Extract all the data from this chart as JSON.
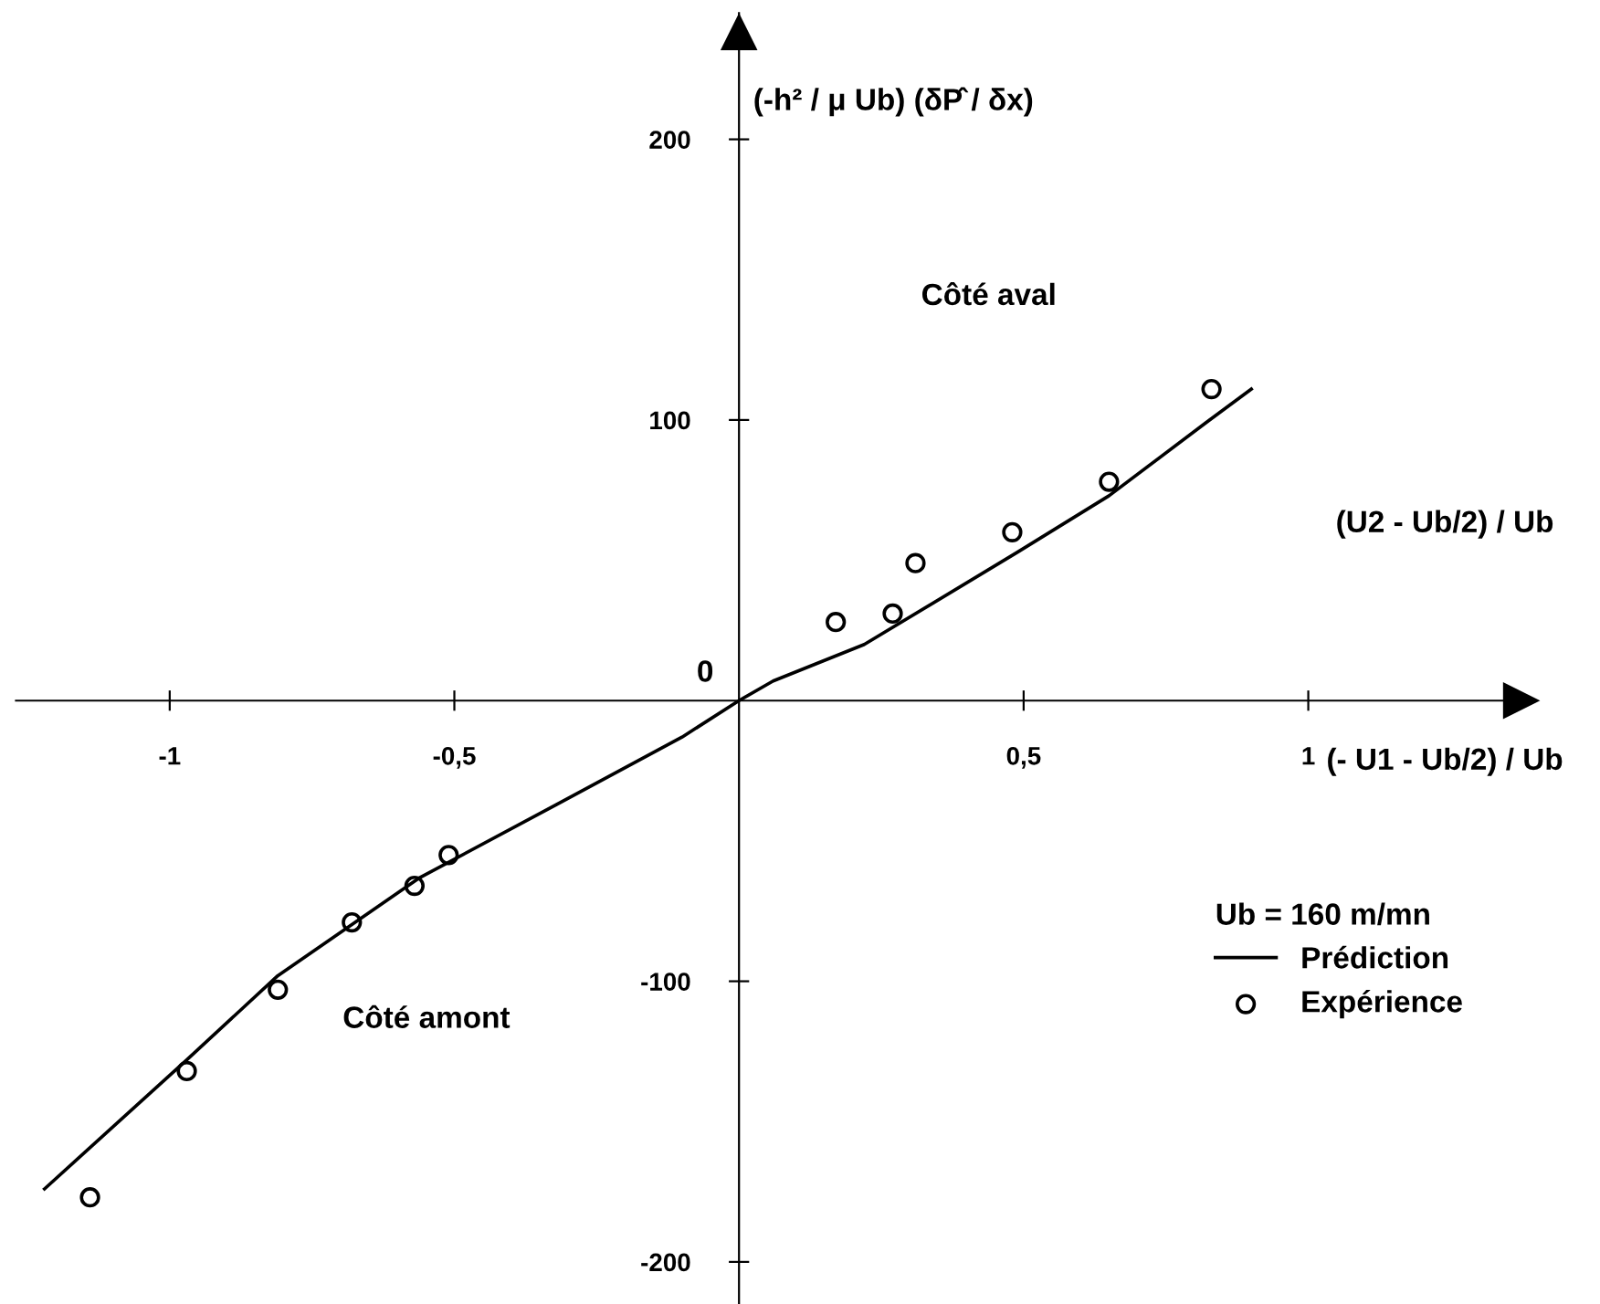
{
  "chart_data": {
    "type": "line",
    "xlabel": "(U2 - Ub/2) / Ub",
    "ylabel": "(-h² / μ Ub) (δP̂ / δx)",
    "legend_title": "Ub = 160 m/mn",
    "annotations": [
      "(- U1 - Ub/2) / Ub",
      "Côté aval",
      "Côté amont",
      {
        "text": "0",
        "x": 0,
        "y": 0
      }
    ],
    "series": [
      {
        "name": "Prédiction",
        "type": "line",
        "color": "#000000",
        "marker": "none",
        "line_style": "solid",
        "x": [
          -1.22,
          -0.97,
          -0.81,
          -0.56,
          -0.32,
          -0.1,
          0,
          0.06,
          0.22,
          0.49,
          0.65,
          0.82,
          0.9
        ],
        "values": [
          -174,
          -128,
          -98,
          -63,
          -37,
          -13,
          0,
          7,
          20,
          53,
          73,
          99,
          111
        ]
      },
      {
        "name": "Expérience",
        "type": "scatter",
        "color": "#000000",
        "marker": "circle",
        "x": [
          0.17,
          0.27,
          0.31,
          0.48,
          0.65,
          0.83,
          -0.51,
          -0.57,
          -0.68,
          -0.81,
          -0.97,
          -1.14
        ],
        "values": [
          28,
          31,
          49,
          60,
          78,
          111,
          -55,
          -66,
          -79,
          -103,
          -132,
          -177
        ]
      }
    ],
    "xlim": [
      -1.27,
      1.4
    ],
    "ylim": [
      -215,
      245
    ],
    "xticks": [
      -1,
      {
        "value": -0.5,
        "label": "-0,5"
      },
      {
        "value": 0.5,
        "label": "0,5"
      },
      1
    ],
    "yticks": [
      -200,
      -100,
      100,
      200
    ],
    "grid": false,
    "legend": "bottom right"
  }
}
